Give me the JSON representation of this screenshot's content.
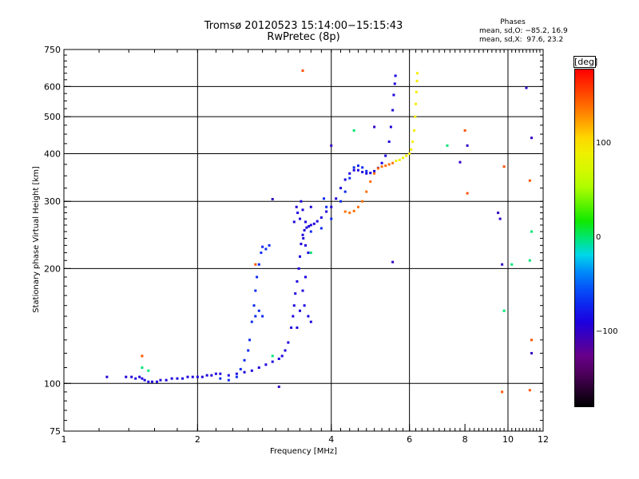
{
  "chart_data": {
    "type": "scatter",
    "title": "Tromsø 20120523 15:14:00−15:15:43",
    "subtitle": "RwPretec (8p)",
    "xlabel": "Frequency [MHz]",
    "ylabel": "Stationary phase Virtual Height [km]",
    "x_scale": "log",
    "y_scale": "log",
    "xlim": [
      1,
      12
    ],
    "ylim": [
      75,
      750
    ],
    "x_ticks": [
      1,
      2,
      4,
      6,
      8,
      10,
      12
    ],
    "y_ticks": [
      75,
      100,
      200,
      300,
      400,
      500,
      600,
      750
    ],
    "x_gridlines": [
      2,
      4,
      6,
      10
    ],
    "y_gridlines": [
      100,
      200,
      300,
      400,
      500,
      600
    ],
    "grid": true,
    "phases_panel": {
      "title": "Phases",
      "line0": "mean, sd,O: −85.2, 16.9",
      "line1": "mean, sd,X:  97.6, 23.2"
    },
    "colorbar": {
      "label": "[deg]",
      "range": [
        -180,
        180
      ],
      "ticks": [
        {
          "value": 100,
          "label": "100"
        },
        {
          "value": 0,
          "label": "0"
        },
        {
          "value": -100,
          "label": "−100"
        }
      ]
    },
    "series": [
      {
        "name": "",
        "phase_deg": -90,
        "points": [
          [
            1.25,
            104
          ],
          [
            1.38,
            104
          ],
          [
            1.42,
            104
          ],
          [
            1.45,
            103
          ],
          [
            1.48,
            104
          ],
          [
            1.5,
            103
          ],
          [
            1.52,
            102
          ],
          [
            1.55,
            101
          ],
          [
            1.58,
            101
          ],
          [
            1.62,
            101
          ],
          [
            1.65,
            102
          ],
          [
            1.7,
            102
          ],
          [
            1.75,
            103
          ],
          [
            1.8,
            103
          ],
          [
            1.85,
            103
          ],
          [
            1.9,
            104
          ],
          [
            1.95,
            104
          ],
          [
            2.0,
            104
          ],
          [
            2.05,
            104
          ],
          [
            2.1,
            105
          ],
          [
            2.15,
            105
          ],
          [
            2.2,
            106
          ],
          [
            2.25,
            106
          ],
          [
            2.35,
            105
          ],
          [
            2.45,
            106
          ],
          [
            2.55,
            107
          ],
          [
            2.65,
            108
          ],
          [
            2.75,
            110
          ],
          [
            2.85,
            112
          ],
          [
            2.95,
            114
          ],
          [
            3.05,
            116
          ],
          [
            3.1,
            118
          ],
          [
            3.15,
            122
          ],
          [
            3.2,
            128
          ],
          [
            3.25,
            140
          ],
          [
            3.28,
            150
          ],
          [
            3.3,
            160
          ],
          [
            3.32,
            172
          ],
          [
            3.35,
            185
          ],
          [
            3.38,
            200
          ],
          [
            3.4,
            215
          ],
          [
            3.42,
            232
          ],
          [
            3.45,
            245
          ],
          [
            3.48,
            252
          ],
          [
            3.52,
            256
          ],
          [
            3.56,
            258
          ],
          [
            3.6,
            260
          ],
          [
            3.66,
            262
          ],
          [
            3.72,
            266
          ],
          [
            3.8,
            272
          ],
          [
            3.9,
            282
          ],
          [
            4.0,
            290
          ],
          [
            4.1,
            305
          ],
          [
            4.2,
            325
          ],
          [
            4.3,
            342
          ],
          [
            4.4,
            355
          ],
          [
            4.5,
            362
          ],
          [
            4.6,
            362
          ],
          [
            4.7,
            358
          ],
          [
            4.8,
            355
          ],
          [
            4.9,
            356
          ],
          [
            5.0,
            360
          ],
          [
            5.1,
            367
          ],
          [
            5.2,
            378
          ],
          [
            5.3,
            395
          ],
          [
            5.4,
            430
          ],
          [
            5.45,
            470
          ],
          [
            5.5,
            520
          ],
          [
            5.53,
            570
          ],
          [
            5.56,
            610
          ],
          [
            5.58,
            640
          ],
          [
            3.34,
            290
          ],
          [
            3.36,
            280
          ],
          [
            3.3,
            265
          ],
          [
            3.4,
            270
          ],
          [
            3.42,
            300
          ],
          [
            3.46,
            240
          ],
          [
            3.5,
            230
          ],
          [
            3.55,
            220
          ],
          [
            3.5,
            190
          ],
          [
            3.45,
            175
          ],
          [
            3.48,
            160
          ],
          [
            3.55,
            150
          ],
          [
            3.6,
            145
          ],
          [
            3.4,
            155
          ],
          [
            3.35,
            140
          ],
          [
            3.5,
            265
          ],
          [
            3.6,
            290
          ],
          [
            3.45,
            285
          ]
        ]
      },
      {
        "name": "",
        "phase_deg": -70,
        "points": [
          [
            2.25,
            103
          ],
          [
            2.35,
            102
          ],
          [
            2.45,
            104
          ],
          [
            2.5,
            109
          ],
          [
            2.55,
            115
          ],
          [
            2.6,
            122
          ],
          [
            2.62,
            130
          ],
          [
            2.65,
            145
          ],
          [
            2.68,
            160
          ],
          [
            2.7,
            175
          ],
          [
            2.72,
            190
          ],
          [
            2.75,
            205
          ],
          [
            2.78,
            220
          ],
          [
            2.8,
            228
          ],
          [
            2.85,
            225
          ],
          [
            2.9,
            230
          ],
          [
            2.7,
            150
          ],
          [
            2.75,
            155
          ],
          [
            2.8,
            150
          ],
          [
            3.6,
            250
          ],
          [
            3.8,
            255
          ],
          [
            4.0,
            270
          ],
          [
            4.2,
            300
          ],
          [
            4.3,
            318
          ],
          [
            4.4,
            345
          ],
          [
            4.5,
            368
          ],
          [
            4.6,
            372
          ],
          [
            4.7,
            368
          ],
          [
            4.8,
            360
          ],
          [
            3.85,
            305
          ],
          [
            3.9,
            290
          ]
        ]
      },
      {
        "name": "",
        "phase_deg": 140,
        "points": [
          [
            4.3,
            282
          ],
          [
            4.4,
            280
          ],
          [
            4.5,
            283
          ],
          [
            4.6,
            290
          ],
          [
            4.7,
            300
          ],
          [
            4.8,
            318
          ],
          [
            4.9,
            338
          ],
          [
            5.0,
            355
          ],
          [
            5.1,
            366
          ],
          [
            5.2,
            370
          ],
          [
            5.3,
            372
          ],
          [
            5.4,
            375
          ],
          [
            5.5,
            378
          ]
        ]
      },
      {
        "name": "",
        "phase_deg": 95,
        "points": [
          [
            5.6,
            383
          ],
          [
            5.7,
            385
          ],
          [
            5.8,
            390
          ],
          [
            5.9,
            395
          ],
          [
            6.0,
            400
          ],
          [
            6.05,
            410
          ],
          [
            6.1,
            430
          ],
          [
            6.15,
            460
          ],
          [
            6.18,
            500
          ],
          [
            6.2,
            540
          ],
          [
            6.22,
            580
          ],
          [
            6.24,
            620
          ],
          [
            6.25,
            650
          ]
        ]
      },
      {
        "name": "",
        "phase_deg": 0,
        "points": [
          [
            1.5,
            110
          ],
          [
            1.55,
            108
          ],
          [
            2.95,
            118
          ],
          [
            3.6,
            220
          ],
          [
            4.5,
            460
          ],
          [
            7.3,
            420
          ],
          [
            10.2,
            205
          ],
          [
            11.2,
            210
          ],
          [
            11.3,
            250
          ],
          [
            9.8,
            155
          ]
        ]
      },
      {
        "name": "",
        "phase_deg": 150,
        "points": [
          [
            1.5,
            118
          ],
          [
            3.45,
            660
          ],
          [
            8.0,
            460
          ],
          [
            8.1,
            315
          ],
          [
            9.8,
            370
          ],
          [
            9.7,
            95
          ],
          [
            11.3,
            130
          ],
          [
            11.2,
            340
          ],
          [
            11.2,
            96
          ],
          [
            2.7,
            205
          ]
        ]
      },
      {
        "name": "",
        "phase_deg": -100,
        "points": [
          [
            3.05,
            98
          ],
          [
            2.95,
            304
          ],
          [
            4.0,
            420
          ],
          [
            5.5,
            208
          ],
          [
            7.8,
            380
          ],
          [
            8.1,
            420
          ],
          [
            9.5,
            280
          ],
          [
            9.6,
            270
          ],
          [
            9.7,
            205
          ],
          [
            11.0,
            595
          ],
          [
            11.3,
            120
          ],
          [
            11.3,
            440
          ],
          [
            5.0,
            470
          ]
        ]
      }
    ]
  }
}
